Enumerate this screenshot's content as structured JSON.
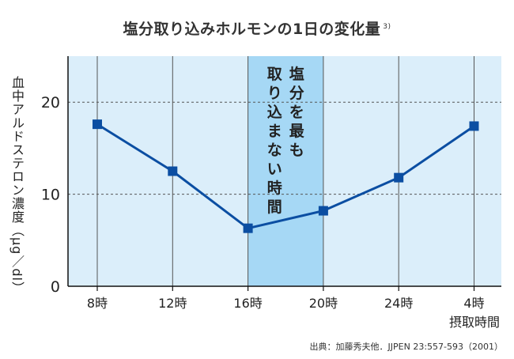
{
  "title": "塩分取り込みホルモンの1日の変化量",
  "title_ref": "3)",
  "source": "出典：加藤秀夫他．JJPEN 23:557-593（2001）",
  "colors": {
    "plot_bg": "#dbeefa",
    "highlight_bg": "#a6d8f5",
    "line": "#0b4ea2",
    "grid": "#555555",
    "axis": "#111111"
  },
  "chart_data": {
    "type": "line",
    "title": "塩分取り込みホルモンの1日の変化量",
    "ylabel": "血中アルドステロン濃度（μg／dl）",
    "xlabel": "摂取時間",
    "categories": [
      "8時",
      "12時",
      "16時",
      "20時",
      "24時",
      "4時"
    ],
    "series": [
      {
        "values": [
          17.6,
          12.5,
          6.3,
          8.2,
          11.8,
          17.4
        ]
      }
    ],
    "ylim": [
      0,
      25
    ],
    "yticks": [
      0,
      10,
      20
    ],
    "grid": "horizontal dashed at 10 and 20; vertical lines at each category",
    "highlight": {
      "from": "16時",
      "to": "20時",
      "label": "塩分を最も取り込まない時間"
    }
  }
}
